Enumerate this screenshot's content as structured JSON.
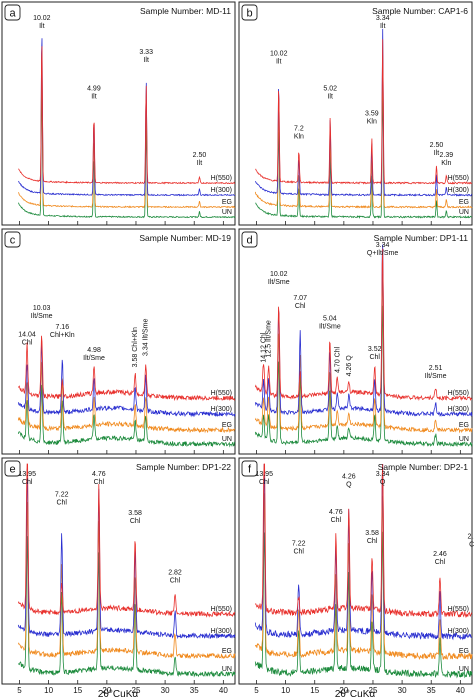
{
  "x_axis_label": "2θ°CuKα",
  "trace_labels": [
    "H(550)",
    "H(300)",
    "EG",
    "UN"
  ],
  "colors": {
    "H(550)": "#e8302c",
    "H(300)": "#2a2fd0",
    "EG": "#f08a1e",
    "UN": "#1c8a3c"
  },
  "chart_data": [
    {
      "type": "line",
      "letter": "a",
      "sample": "Sample Number: MD-11",
      "xlim": [
        2,
        42
      ],
      "xticks": [
        5,
        10,
        15,
        20,
        25,
        30,
        35,
        40
      ],
      "series": [
        {
          "name": "H(550)"
        },
        {
          "name": "H(300)"
        },
        {
          "name": "EG"
        },
        {
          "name": "UN"
        }
      ],
      "peaks": [
        {
          "x": 8.84,
          "label": [
            "10.02",
            "Ilt"
          ],
          "height": 1.0
        },
        {
          "x": 17.78,
          "label": [
            "4.99",
            "Ilt"
          ],
          "height": 0.46
        },
        {
          "x": 26.75,
          "label": [
            "3.33",
            "Ilt"
          ],
          "height": 0.68
        },
        {
          "x": 35.9,
          "label": [
            "2.50",
            "Ilt"
          ],
          "height": 0.04
        }
      ]
    },
    {
      "type": "line",
      "letter": "b",
      "sample": "Sample Number: CAP1-6",
      "xlim": [
        2,
        42
      ],
      "xticks": [
        5,
        10,
        15,
        20,
        25,
        30,
        35,
        40
      ],
      "series": [
        {
          "name": "H(550)"
        },
        {
          "name": "H(300)"
        },
        {
          "name": "EG"
        },
        {
          "name": "UN"
        }
      ],
      "peaks": [
        {
          "x": 8.82,
          "label": [
            "10.02",
            "Ilt"
          ],
          "height": 0.67
        },
        {
          "x": 12.28,
          "label": [
            "7.2",
            "Kln"
          ],
          "height": 0.22
        },
        {
          "x": 17.66,
          "label": [
            "5.02",
            "Ilt"
          ],
          "height": 0.46
        },
        {
          "x": 24.8,
          "label": [
            "3.59",
            "Kln"
          ],
          "height": 0.31
        },
        {
          "x": 26.67,
          "label": [
            "3.34",
            "Ilt"
          ],
          "height": 1.0
        },
        {
          "x": 35.9,
          "label": [
            "2.50",
            "Ilt"
          ],
          "height": 0.12
        },
        {
          "x": 37.6,
          "label": [
            "2.39",
            "Kln"
          ],
          "height": 0.05
        }
      ]
    },
    {
      "type": "line",
      "letter": "c",
      "sample": "Sample Number: MD-19",
      "xlim": [
        2,
        42
      ],
      "xticks": [
        5,
        10,
        15,
        20,
        25,
        30,
        35,
        40
      ],
      "series": [
        {
          "name": "H(550)"
        },
        {
          "name": "H(300)"
        },
        {
          "name": "EG"
        },
        {
          "name": "UN"
        }
      ],
      "peaks": [
        {
          "x": 6.3,
          "label": [
            "14.04",
            "Chl"
          ],
          "height": 0.24
        },
        {
          "x": 8.81,
          "label": [
            "10.03",
            "Ilt/Sme"
          ],
          "height": 0.38
        },
        {
          "x": 12.35,
          "label": [
            "7.16",
            "Chl+Kln"
          ],
          "height": 0.28
        },
        {
          "x": 17.8,
          "label": [
            "4.98",
            "Ilt/Sme"
          ],
          "height": 0.16
        },
        {
          "x": 24.86,
          "label": [
            "3.58 Chl+Kln"
          ],
          "height": 0.12,
          "rotate": true
        },
        {
          "x": 26.67,
          "label": [
            "3.34 Ilt/Sme"
          ],
          "height": 0.18,
          "rotate": true
        }
      ]
    },
    {
      "type": "line",
      "letter": "d",
      "sample": "Sample Number: DP1-11",
      "xlim": [
        2,
        42
      ],
      "xticks": [
        5,
        10,
        15,
        20,
        25,
        30,
        35,
        40
      ],
      "series": [
        {
          "name": "H(550)"
        },
        {
          "name": "H(300)"
        },
        {
          "name": "EG"
        },
        {
          "name": "UN"
        }
      ],
      "peaks": [
        {
          "x": 6.22,
          "label": [
            "14.12 Chl"
          ],
          "height": 0.16,
          "rotate": true
        },
        {
          "x": 7.08,
          "label": [
            "12.5 Ilt/Sme"
          ],
          "height": 0.19,
          "rotate": true
        },
        {
          "x": 8.82,
          "label": [
            "10.02",
            "Ilt/Sme"
          ],
          "height": 0.62
        },
        {
          "x": 12.5,
          "label": [
            "7.07",
            "Chl"
          ],
          "height": 0.48
        },
        {
          "x": 17.6,
          "label": [
            "5.04",
            "Ilt/Sme"
          ],
          "height": 0.36
        },
        {
          "x": 18.87,
          "label": [
            "4.70 Chl"
          ],
          "height": 0.1,
          "rotate": true
        },
        {
          "x": 20.85,
          "label": [
            "4.26 Q"
          ],
          "height": 0.08,
          "rotate": true
        },
        {
          "x": 25.3,
          "label": [
            "3.52",
            "Chl"
          ],
          "height": 0.18
        },
        {
          "x": 26.65,
          "label": [
            "3.34",
            "Q+Ilt/Sme"
          ],
          "height": 1.0
        },
        {
          "x": 35.75,
          "label": [
            "2.51",
            "Ilt/Sme"
          ],
          "height": 0.07
        }
      ]
    },
    {
      "type": "line",
      "letter": "e",
      "sample": "Sample Number: DP1-22",
      "xlim": [
        2,
        42
      ],
      "xticks": [
        5,
        10,
        15,
        20,
        25,
        30,
        35,
        40
      ],
      "series": [
        {
          "name": "H(550)"
        },
        {
          "name": "H(300)"
        },
        {
          "name": "EG"
        },
        {
          "name": "UN"
        }
      ],
      "peaks": [
        {
          "x": 6.33,
          "label": [
            "13.95",
            "Chl"
          ],
          "height": 1.0
        },
        {
          "x": 12.25,
          "label": [
            "7.22",
            "Chl"
          ],
          "height": 0.61
        },
        {
          "x": 18.63,
          "label": [
            "4.76",
            "Chl"
          ],
          "height": 0.86
        },
        {
          "x": 24.85,
          "label": [
            "3.58",
            "Chl"
          ],
          "height": 0.5
        },
        {
          "x": 31.7,
          "label": [
            "2.82",
            "Chl"
          ],
          "height": 0.14
        }
      ]
    },
    {
      "type": "line",
      "letter": "f",
      "sample": "Sample Number: DP2-1",
      "xlim": [
        2,
        42
      ],
      "xticks": [
        5,
        10,
        15,
        20,
        25,
        30,
        35,
        40
      ],
      "series": [
        {
          "name": "H(550)"
        },
        {
          "name": "H(300)"
        },
        {
          "name": "EG"
        },
        {
          "name": "UN"
        }
      ],
      "peaks": [
        {
          "x": 6.33,
          "label": [
            "13.95",
            "Chl"
          ],
          "height": 1.0
        },
        {
          "x": 12.25,
          "label": [
            "7.22",
            "Chl"
          ],
          "height": 0.3
        },
        {
          "x": 18.63,
          "label": [
            "4.76",
            "Chl"
          ],
          "height": 0.48
        },
        {
          "x": 20.85,
          "label": [
            "4.26",
            "Q"
          ],
          "height": 0.68
        },
        {
          "x": 24.85,
          "label": [
            "3.58",
            "Chl"
          ],
          "height": 0.36
        },
        {
          "x": 26.65,
          "label": [
            "3.34",
            "Q"
          ],
          "height": 1.0
        },
        {
          "x": 36.5,
          "label": [
            "2.46",
            "Chl"
          ],
          "height": 0.24
        },
        {
          "x": 42.4,
          "label": [
            "2.13",
            "Chl"
          ],
          "height": 0.34
        }
      ]
    }
  ]
}
